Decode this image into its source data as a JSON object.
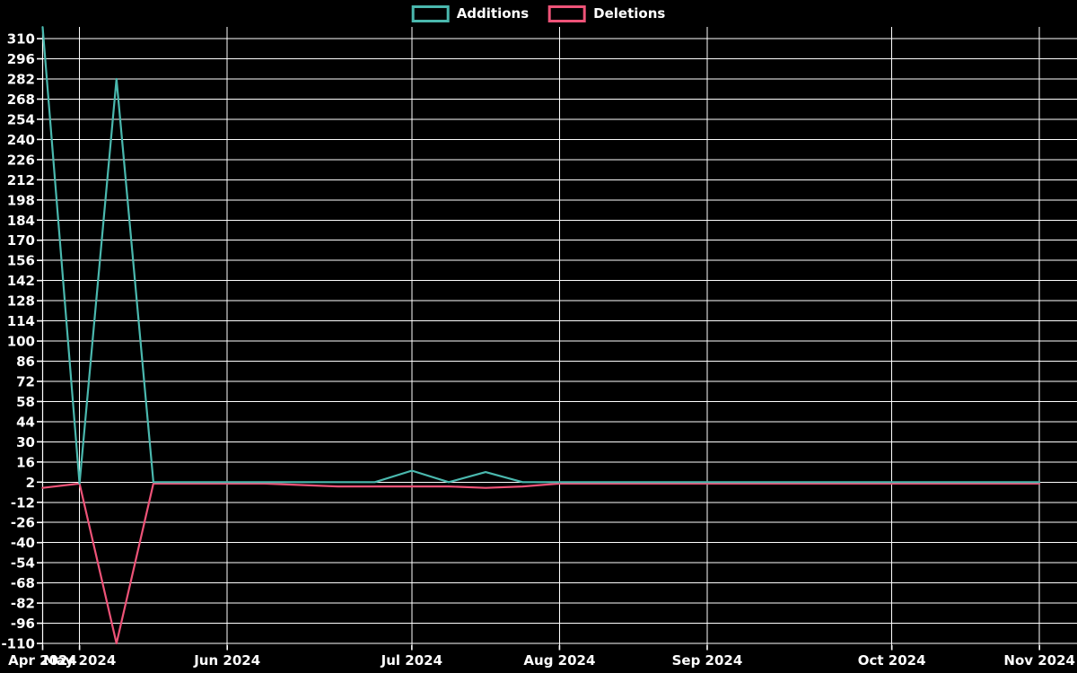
{
  "chart": {
    "background_color": "#000000",
    "grid_color": "#ffffff",
    "text_color": "#ffffff",
    "additions_color": "#4ab8ae",
    "deletions_color": "#ee5378"
  },
  "chart_data": {
    "type": "line",
    "title": "",
    "xlabel": "",
    "ylabel": "",
    "legend_position": "top-center",
    "grid": true,
    "x": [
      0,
      1,
      2,
      3,
      4,
      5,
      6,
      7,
      8,
      9,
      10,
      11,
      12,
      13,
      14,
      15,
      16,
      17,
      18,
      19,
      20,
      21,
      22,
      23,
      24,
      25,
      26,
      27
    ],
    "x_unit": "week-index",
    "series": [
      {
        "name": "Additions",
        "color": "#4ab8ae",
        "values": [
          318,
          1,
          282,
          2,
          2,
          2,
          2,
          2,
          2,
          2,
          10,
          2,
          9,
          2,
          2,
          2,
          2,
          2,
          2,
          2,
          2,
          2,
          2,
          2,
          2,
          2,
          2,
          2
        ]
      },
      {
        "name": "Deletions",
        "color": "#ee5378",
        "values": [
          -2,
          1,
          -110,
          1,
          1,
          1,
          1,
          0,
          -1,
          -1,
          -1,
          -1,
          -2,
          -1,
          1,
          1,
          1,
          1,
          1,
          1,
          1,
          1,
          1,
          1,
          1,
          1,
          1,
          1
        ]
      }
    ],
    "x_tick_labels": [
      "Apr 2024",
      "May 2024",
      "Jun 2024",
      "Jul 2024",
      "Aug 2024",
      "Sep 2024",
      "Oct 2024",
      "Nov 2024"
    ],
    "x_tick_week_index": [
      0,
      1,
      5,
      10,
      14,
      18,
      23,
      27
    ],
    "y_tick_min": -110,
    "y_tick_max": 310,
    "y_tick_step": 14,
    "y_tick_values": [
      310,
      296,
      282,
      268,
      254,
      240,
      226,
      212,
      198,
      184,
      170,
      156,
      142,
      128,
      114,
      100,
      86,
      72,
      58,
      44,
      30,
      16,
      2,
      -12,
      -26,
      -40,
      -54,
      -68,
      -82,
      -96,
      -110
    ],
    "ylim": [
      -113,
      320
    ]
  }
}
